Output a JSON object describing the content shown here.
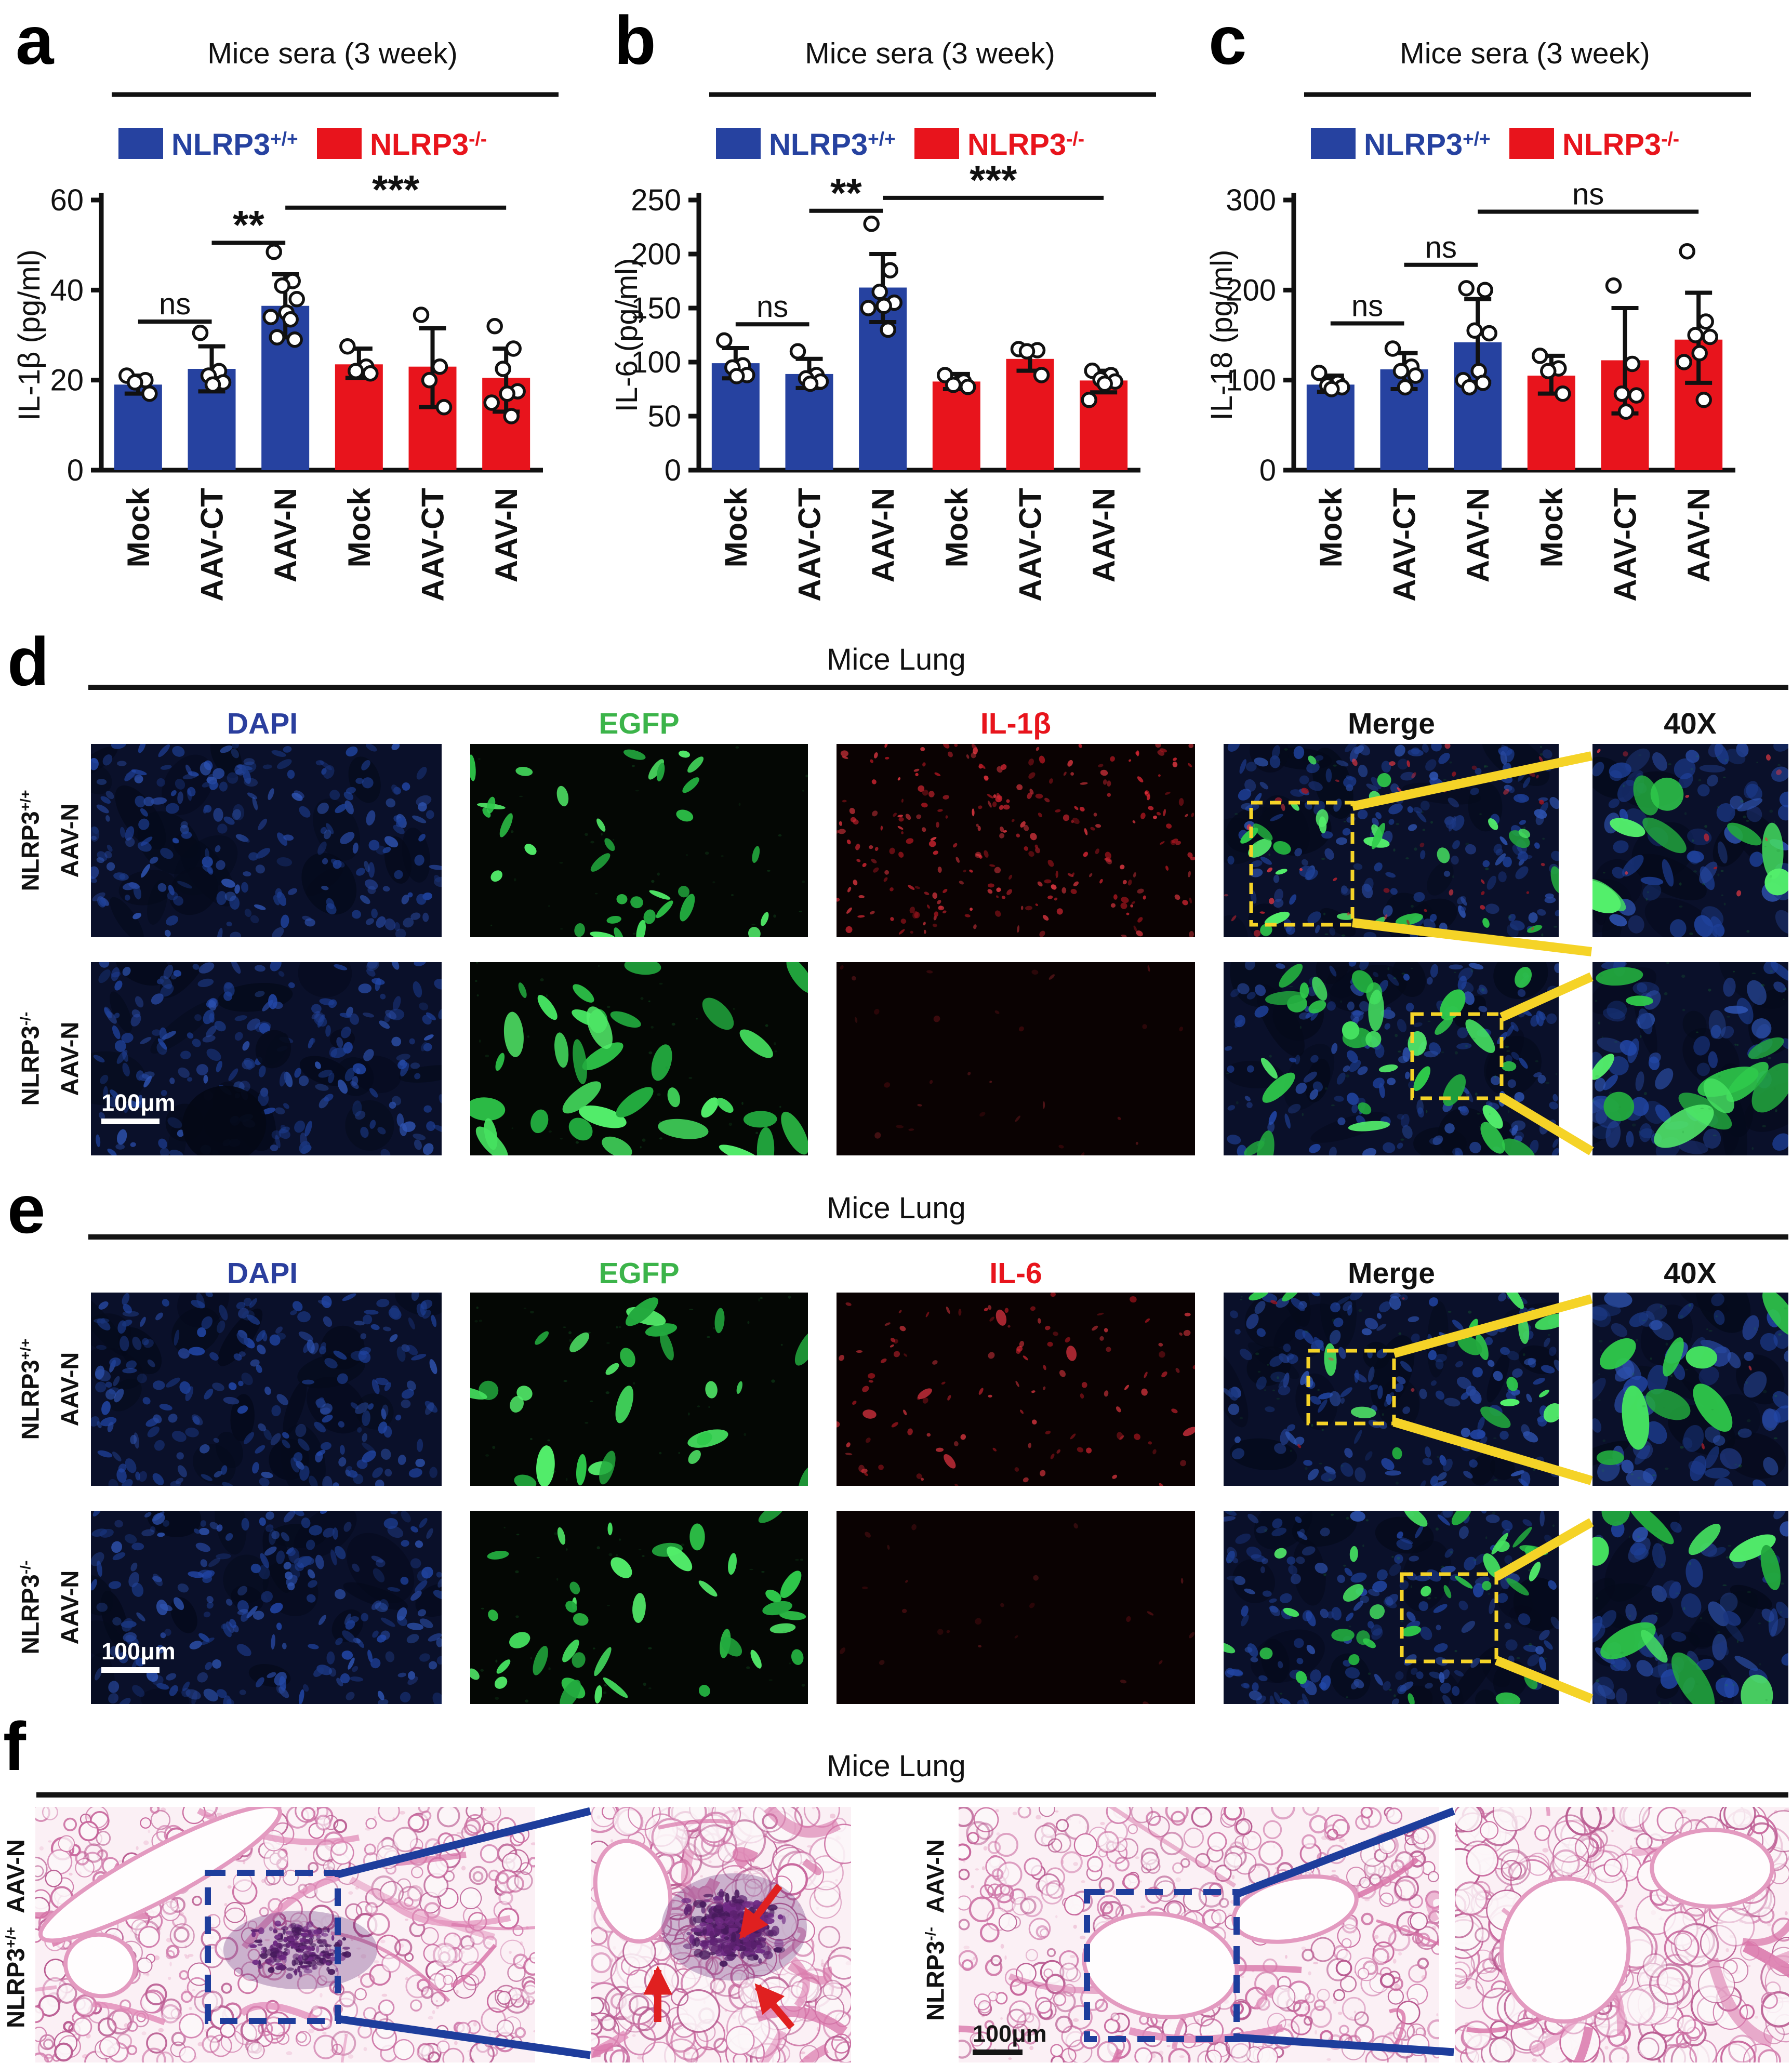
{
  "figure": {
    "panel_letters": {
      "a": "a",
      "b": "b",
      "c": "c",
      "d": "d",
      "e": "e",
      "f": "f"
    },
    "legend": {
      "wt_base": "NLRP3",
      "wt_sup": "+/+",
      "ko_base": "NLRP3",
      "ko_sup": "-/-"
    },
    "scale_bar": "100μm"
  },
  "colors": {
    "wt": "#2642A0",
    "ko": "#E8141C",
    "axis": "#111111",
    "dapi_label": "#2B3F9E",
    "egfp_label": "#3CB44A",
    "marker_label": "#E8141C",
    "highlight_yellow": "#F5D327",
    "hne_blue": "#1E3D9C",
    "arrow_red": "#E02020"
  },
  "chart_data": [
    {
      "panel": "a",
      "type": "bar",
      "title": "Mice sera (3 week)",
      "ylabel": "IL-1β (pg/ml)",
      "ylim": [
        0,
        60
      ],
      "yticks": [
        0,
        20,
        40,
        60
      ],
      "categories": [
        "Mock",
        "AAV-CT",
        "AAV-N",
        "Mock",
        "AAV-CT",
        "AAV-N"
      ],
      "groups": [
        "wt",
        "wt",
        "wt",
        "ko",
        "ko",
        "ko"
      ],
      "values": [
        19,
        22.5,
        36.5,
        23.5,
        23,
        20.5
      ],
      "errors": [
        [
          17,
          21
        ],
        [
          17.5,
          27.5
        ],
        [
          29.5,
          43.5
        ],
        [
          20.5,
          27
        ],
        [
          14,
          31.5
        ],
        [
          13,
          27
        ]
      ],
      "points": [
        [
          21,
          20,
          19.5,
          17
        ],
        [
          30.5,
          22,
          21,
          19.5,
          19
        ],
        [
          48.5,
          42,
          41,
          38,
          35,
          34,
          33.5,
          29.5,
          29
        ],
        [
          27.5,
          23,
          22,
          21.5
        ],
        [
          34.5,
          23,
          20,
          14
        ],
        [
          32,
          27,
          22.5,
          17.5,
          17,
          15,
          12
        ]
      ],
      "brackets": [
        {
          "i": 0,
          "j": 1,
          "y": 33,
          "label": "ns"
        },
        {
          "i": 1,
          "j": 2,
          "y": 50.5,
          "label": "**"
        },
        {
          "i": 2,
          "j": 5,
          "y": 58.3,
          "label": "***"
        }
      ],
      "legend_position": "top",
      "grid": false
    },
    {
      "panel": "b",
      "type": "bar",
      "title": "Mice sera (3 week)",
      "ylabel": "IL-6 (pg/ml)",
      "ylim": [
        0,
        250
      ],
      "yticks": [
        0,
        50,
        100,
        150,
        200,
        250
      ],
      "categories": [
        "Mock",
        "AAV-CT",
        "AAV-N",
        "Mock",
        "AAV-CT",
        "AAV-N"
      ],
      "groups": [
        "wt",
        "wt",
        "wt",
        "ko",
        "ko",
        "ko"
      ],
      "values": [
        99,
        89,
        169,
        82,
        103,
        83
      ],
      "errors": [
        [
          85,
          113
        ],
        [
          76,
          103
        ],
        [
          137,
          200
        ],
        [
          75,
          89
        ],
        [
          92,
          113
        ],
        [
          72,
          92
        ]
      ],
      "points": [
        [
          120,
          97,
          95,
          88,
          87
        ],
        [
          110,
          88,
          85,
          82,
          80
        ],
        [
          228,
          185,
          165,
          155,
          152,
          150,
          130
        ],
        [
          88,
          82,
          79,
          77
        ],
        [
          112,
          111,
          110,
          88
        ],
        [
          92,
          88,
          84,
          82,
          80,
          65
        ]
      ],
      "brackets": [
        {
          "i": 0,
          "j": 1,
          "y": 135,
          "label": "ns"
        },
        {
          "i": 1,
          "j": 2,
          "y": 240,
          "label": "**"
        },
        {
          "i": 2,
          "j": 5,
          "y": 252,
          "label": "***"
        }
      ],
      "legend_position": "top",
      "grid": false
    },
    {
      "panel": "c",
      "type": "bar",
      "title": "Mice sera (3 week)",
      "ylabel": "IL-18 (pg/ml)",
      "ylim": [
        0,
        300
      ],
      "yticks": [
        0,
        100,
        200,
        300
      ],
      "categories": [
        "Mock",
        "AAV-CT",
        "AAV-N",
        "Mock",
        "AAV-CT",
        "AAV-N"
      ],
      "groups": [
        "wt",
        "wt",
        "wt",
        "ko",
        "ko",
        "ko"
      ],
      "values": [
        95,
        112,
        142,
        105,
        122,
        145
      ],
      "errors": [
        [
          87,
          105
        ],
        [
          90,
          130
        ],
        [
          98,
          190
        ],
        [
          85,
          127
        ],
        [
          63,
          180
        ],
        [
          97,
          197
        ]
      ],
      "points": [
        [
          108,
          97,
          94,
          92,
          90
        ],
        [
          135,
          115,
          110,
          105,
          92
        ],
        [
          202,
          200,
          155,
          152,
          110,
          100,
          97,
          92
        ],
        [
          127,
          113,
          110,
          85
        ],
        [
          205,
          118,
          85,
          83,
          65
        ],
        [
          243,
          165,
          150,
          148,
          130,
          120,
          78
        ]
      ],
      "brackets": [
        {
          "i": 0,
          "j": 1,
          "y": 163,
          "label": "ns"
        },
        {
          "i": 1,
          "j": 2,
          "y": 228,
          "label": "ns"
        },
        {
          "i": 2,
          "j": 5,
          "y": 287,
          "label": "ns"
        }
      ],
      "legend_position": "top",
      "grid": false
    }
  ],
  "panel_d": {
    "title": "Mice Lung",
    "columns": [
      {
        "label": "DAPI",
        "color": "#2B3F9E"
      },
      {
        "label": "EGFP",
        "color": "#3CB44A"
      },
      {
        "label": "IL-1β",
        "color": "#E8141C"
      },
      {
        "label": "Merge",
        "color": "#111111"
      },
      {
        "label": "40X",
        "color": "#111111"
      }
    ],
    "rows": [
      {
        "genotype_base": "NLRP3",
        "genotype_sup": "+/+",
        "treatment": "AAV-N"
      },
      {
        "genotype_base": "NLRP3",
        "genotype_sup": "-/-",
        "treatment": "AAV-N"
      }
    ]
  },
  "panel_e": {
    "title": "Mice Lung",
    "columns": [
      {
        "label": "DAPI",
        "color": "#2B3F9E"
      },
      {
        "label": "EGFP",
        "color": "#3CB44A"
      },
      {
        "label": "IL-6",
        "color": "#E8141C"
      },
      {
        "label": "Merge",
        "color": "#111111"
      },
      {
        "label": "40X",
        "color": "#111111"
      }
    ],
    "rows": [
      {
        "genotype_base": "NLRP3",
        "genotype_sup": "+/+",
        "treatment": "AAV-N"
      },
      {
        "genotype_base": "NLRP3",
        "genotype_sup": "-/-",
        "treatment": "AAV-N"
      }
    ]
  },
  "panel_f": {
    "title": "Mice Lung",
    "left": {
      "genotype_base": "NLRP3",
      "genotype_sup": "+/+",
      "treatment": "AAV-N"
    },
    "right": {
      "genotype_base": "NLRP3",
      "genotype_sup": "-/-",
      "treatment": "AAV-N"
    }
  }
}
